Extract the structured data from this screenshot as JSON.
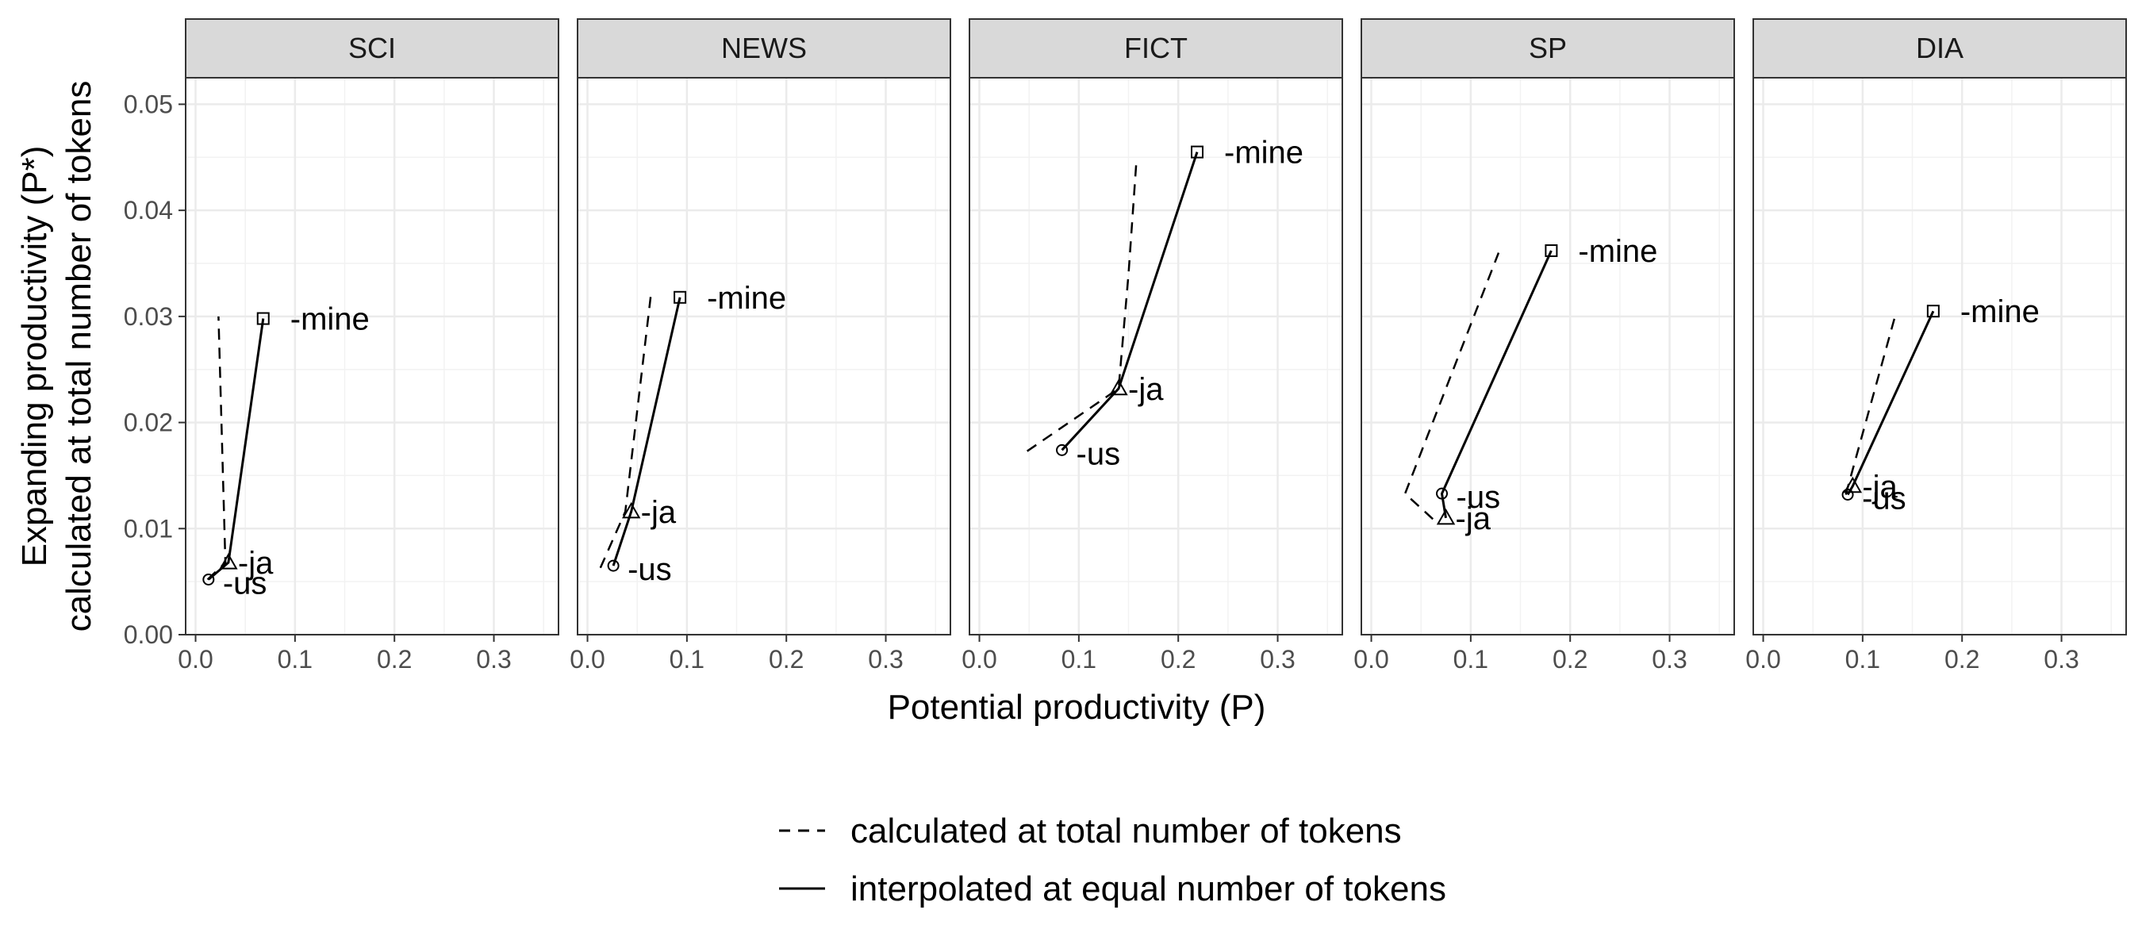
{
  "chart_data": {
    "type": "line",
    "facets": [
      "SCI",
      "NEWS",
      "FICT",
      "SP",
      "DIA"
    ],
    "xlabel": "Potential productivity (P)",
    "ylabel": [
      "Expanding productivity (P*)",
      "calculated at total number of tokens"
    ],
    "xlim": [
      -0.01,
      0.365
    ],
    "ylim": [
      0,
      0.0525
    ],
    "x_ticks": [
      0.0,
      0.1,
      0.2,
      0.3
    ],
    "x_tick_labels": [
      "0.0",
      "0.1",
      "0.2",
      "0.3"
    ],
    "y_ticks": [
      0.0,
      0.01,
      0.02,
      0.03,
      0.04,
      0.05
    ],
    "y_tick_labels": [
      "0.00",
      "0.01",
      "0.02",
      "0.03",
      "0.04",
      "0.05"
    ],
    "grid": true,
    "legend_position": "bottom",
    "legend": [
      {
        "label": "calculated at total number of tokens",
        "linetype": "dashed"
      },
      {
        "label": "interpolated at equal number of tokens",
        "linetype": "solid"
      }
    ],
    "panels": [
      {
        "facet": "SCI",
        "dashed": {
          "x": [
            0.012,
            0.03,
            0.023
          ],
          "y": [
            0.0052,
            0.0068,
            0.03
          ]
        },
        "solid": {
          "points": [
            {
              "label": "-us",
              "shape": "circle",
              "x": 0.013,
              "y": 0.0052
            },
            {
              "label": "-ja",
              "shape": "triangle",
              "x": 0.033,
              "y": 0.0068
            },
            {
              "label": "-mine",
              "shape": "square",
              "x": 0.068,
              "y": 0.0298
            }
          ]
        }
      },
      {
        "facet": "NEWS",
        "dashed": {
          "x": [
            0.013,
            0.038,
            0.064
          ],
          "y": [
            0.0063,
            0.0116,
            0.0322
          ]
        },
        "solid": {
          "points": [
            {
              "label": "-us",
              "shape": "circle",
              "x": 0.026,
              "y": 0.0065
            },
            {
              "label": "-ja",
              "shape": "triangle",
              "x": 0.044,
              "y": 0.0116
            },
            {
              "label": "-mine",
              "shape": "square",
              "x": 0.093,
              "y": 0.0318
            }
          ]
        }
      },
      {
        "facet": "FICT",
        "dashed": {
          "x": [
            0.048,
            0.14,
            0.15,
            0.158
          ],
          "y": [
            0.0173,
            0.0232,
            0.034,
            0.0448
          ]
        },
        "solid": {
          "points": [
            {
              "label": "-us",
              "shape": "circle",
              "x": 0.083,
              "y": 0.0174
            },
            {
              "label": "-ja",
              "shape": "triangle",
              "x": 0.14,
              "y": 0.0232
            },
            {
              "label": "-mine",
              "shape": "square",
              "x": 0.219,
              "y": 0.0455
            }
          ]
        }
      },
      {
        "facet": "SP",
        "dashed": {
          "x": [
            0.062,
            0.034,
            0.128
          ],
          "y": [
            0.0109,
            0.0133,
            0.036
          ]
        },
        "solid": {
          "points": [
            {
              "label": "-ja",
              "shape": "triangle",
              "x": 0.075,
              "y": 0.011
            },
            {
              "label": "-us",
              "shape": "circle",
              "x": 0.071,
              "y": 0.0133
            },
            {
              "label": "-mine",
              "shape": "square",
              "x": 0.181,
              "y": 0.0362
            }
          ]
        }
      },
      {
        "facet": "DIA",
        "dashed": {
          "x": [
            0.083,
            0.134
          ],
          "y": [
            0.0132,
            0.0305
          ]
        },
        "solid": {
          "points": [
            {
              "label": "-us",
              "shape": "circle",
              "x": 0.085,
              "y": 0.0132
            },
            {
              "label": "-ja",
              "shape": "triangle",
              "x": 0.09,
              "y": 0.014
            },
            {
              "label": "-mine",
              "shape": "square",
              "x": 0.171,
              "y": 0.0305
            }
          ]
        }
      }
    ]
  }
}
